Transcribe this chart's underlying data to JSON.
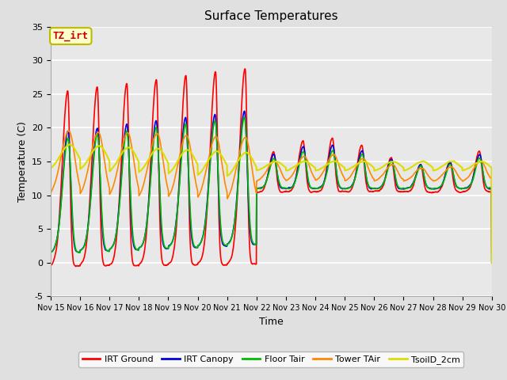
{
  "title": "Surface Temperatures",
  "xlabel": "Time",
  "ylabel": "Temperature (C)",
  "ylim": [
    -5,
    35
  ],
  "xlim": [
    0,
    15
  ],
  "background_color": "#e0e0e0",
  "plot_bg_color": "#e8e8e8",
  "annotation_text": "TZ_irt",
  "annotation_color": "#cc0000",
  "annotation_bg": "#ffffcc",
  "annotation_border": "#bbbb00",
  "series": {
    "IRT Ground": {
      "color": "#ff0000",
      "lw": 1.2
    },
    "IRT Canopy": {
      "color": "#0000dd",
      "lw": 1.2
    },
    "Floor Tair": {
      "color": "#00bb00",
      "lw": 1.2
    },
    "Tower TAir": {
      "color": "#ff8800",
      "lw": 1.2
    },
    "TsoilD_2cm": {
      "color": "#dddd00",
      "lw": 1.5
    }
  },
  "xtick_labels": [
    "Nov 15",
    "Nov 16",
    "Nov 17",
    "Nov 18",
    "Nov 19",
    "Nov 20",
    "Nov 21",
    "Nov 22",
    "Nov 23",
    "Nov 24",
    "Nov 25",
    "Nov 26",
    "Nov 27",
    "Nov 28",
    "Nov 29",
    "Nov 30"
  ],
  "xtick_positions": [
    0,
    1,
    2,
    3,
    4,
    5,
    6,
    7,
    8,
    9,
    10,
    11,
    12,
    13,
    14,
    15
  ],
  "ytick_labels": [
    "-5",
    "0",
    "5",
    "10",
    "15",
    "20",
    "25",
    "30",
    "35"
  ],
  "ytick_positions": [
    -5,
    0,
    5,
    10,
    15,
    20,
    25,
    30,
    35
  ],
  "figsize": [
    6.4,
    4.8
  ],
  "dpi": 100
}
